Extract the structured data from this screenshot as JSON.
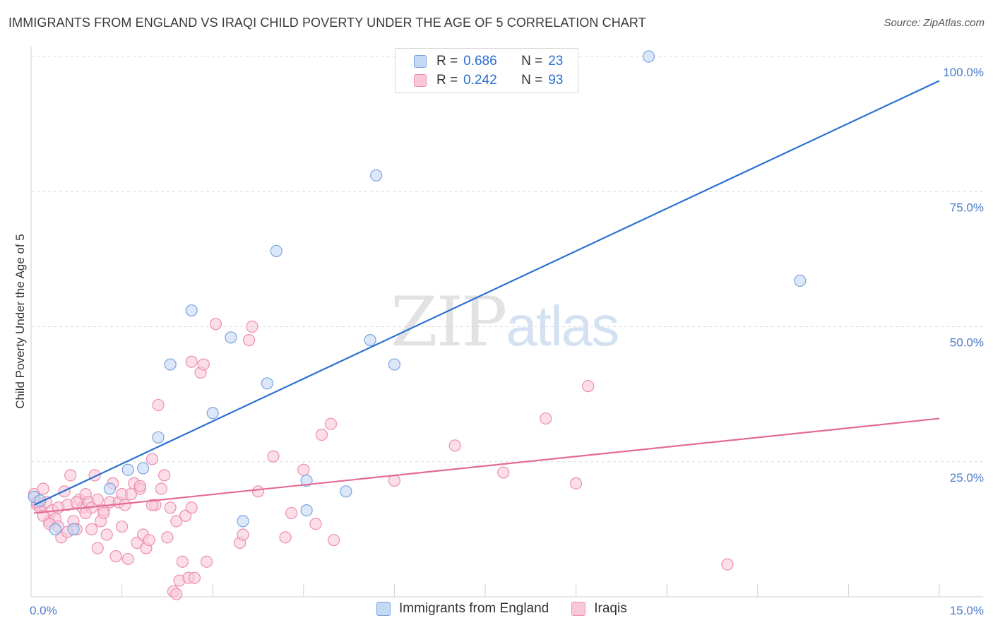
{
  "title": "IMMIGRANTS FROM ENGLAND VS IRAQI CHILD POVERTY UNDER THE AGE OF 5 CORRELATION CHART",
  "source": "Source: ZipAtlas.com",
  "watermark": {
    "part1": "ZIP",
    "part2": "atlas"
  },
  "legend": {
    "rows": [
      {
        "r_label": "R =",
        "r_value": "0.686",
        "n_label": "N =",
        "n_value": "23"
      },
      {
        "r_label": "R =",
        "r_value": "0.242",
        "n_label": "N =",
        "n_value": "93"
      }
    ]
  },
  "bottom_legend": [
    "Immigrants from England",
    "Iraqis"
  ],
  "colors": {
    "england_fill": "#c5d9f5",
    "england_stroke": "#7aa3dd",
    "england_line": "#2a6fd1",
    "iraqi_fill": "#f9c8d8",
    "iraqi_stroke": "#ec8fb0",
    "iraqi_line": "#e46a96",
    "tick_text": "#4a7cc9",
    "grid": "#dcdcdc"
  },
  "chart_data": {
    "type": "scatter",
    "xlabel": "",
    "ylabel": "Child Poverty Under the Age of 5",
    "xlim": [
      0,
      15
    ],
    "ylim": [
      0,
      100
    ],
    "x_tick_labels": [
      {
        "value": 0,
        "label": "0.0%"
      },
      {
        "value": 15,
        "label": "15.0%"
      }
    ],
    "x_minor_ticks": [
      1.5,
      3.0,
      4.5,
      6.0,
      7.5,
      9.0,
      10.5,
      12.0,
      13.5,
      15.0
    ],
    "y_ticks": [
      {
        "value": 25,
        "label": "25.0%"
      },
      {
        "value": 50,
        "label": "50.0%"
      },
      {
        "value": 75,
        "label": "75.0%"
      },
      {
        "value": 100,
        "label": "100.0%"
      }
    ],
    "grid": "horizontal dashed",
    "legend_placement": "top-center",
    "series": [
      {
        "name": "Immigrants from England",
        "points": [
          [
            0.05,
            18.5
          ],
          [
            0.15,
            17.8
          ],
          [
            0.4,
            12.5
          ],
          [
            0.7,
            12.5
          ],
          [
            1.3,
            20.0
          ],
          [
            1.6,
            23.5
          ],
          [
            1.85,
            23.8
          ],
          [
            2.1,
            29.5
          ],
          [
            2.3,
            43.0
          ],
          [
            2.65,
            53.0
          ],
          [
            3.0,
            34.0
          ],
          [
            3.3,
            48.0
          ],
          [
            3.5,
            14.0
          ],
          [
            3.9,
            39.5
          ],
          [
            4.05,
            64.0
          ],
          [
            4.55,
            21.5
          ],
          [
            4.55,
            16.0
          ],
          [
            5.2,
            19.5
          ],
          [
            5.6,
            47.5
          ],
          [
            5.7,
            78.0
          ],
          [
            6.0,
            43.0
          ],
          [
            10.2,
            100.0
          ],
          [
            12.7,
            58.5
          ]
        ],
        "trendline": {
          "x": [
            0.05,
            15.0
          ],
          "y": [
            17.0,
            95.5
          ]
        }
      },
      {
        "name": "Iraqis",
        "points": [
          [
            0.05,
            19.0
          ],
          [
            0.1,
            17.0
          ],
          [
            0.15,
            16.5
          ],
          [
            0.2,
            20.0
          ],
          [
            0.25,
            17.5
          ],
          [
            0.3,
            14.0
          ],
          [
            0.35,
            16.0
          ],
          [
            0.4,
            14.5
          ],
          [
            0.45,
            13.0
          ],
          [
            0.5,
            11.0
          ],
          [
            0.55,
            19.5
          ],
          [
            0.6,
            17.0
          ],
          [
            0.65,
            22.5
          ],
          [
            0.7,
            14.0
          ],
          [
            0.75,
            12.5
          ],
          [
            0.8,
            18.0
          ],
          [
            0.85,
            16.5
          ],
          [
            0.9,
            19.0
          ],
          [
            0.95,
            17.5
          ],
          [
            1.0,
            16.5
          ],
          [
            1.0,
            12.5
          ],
          [
            1.05,
            22.5
          ],
          [
            1.1,
            18.0
          ],
          [
            1.1,
            9.0
          ],
          [
            1.15,
            14.0
          ],
          [
            1.2,
            16.0
          ],
          [
            1.25,
            11.5
          ],
          [
            1.3,
            17.5
          ],
          [
            1.35,
            21.0
          ],
          [
            1.4,
            7.5
          ],
          [
            1.45,
            17.5
          ],
          [
            1.5,
            19.0
          ],
          [
            1.55,
            17.0
          ],
          [
            1.6,
            7.0
          ],
          [
            1.65,
            19.0
          ],
          [
            1.7,
            21.0
          ],
          [
            1.75,
            10.0
          ],
          [
            1.8,
            20.0
          ],
          [
            1.85,
            11.5
          ],
          [
            1.9,
            9.0
          ],
          [
            1.95,
            10.5
          ],
          [
            2.0,
            25.5
          ],
          [
            2.05,
            17.0
          ],
          [
            2.1,
            35.5
          ],
          [
            2.15,
            20.0
          ],
          [
            2.2,
            22.5
          ],
          [
            2.25,
            11.0
          ],
          [
            2.3,
            16.5
          ],
          [
            2.35,
            1.0
          ],
          [
            2.4,
            14.0
          ],
          [
            2.45,
            3.0
          ],
          [
            2.5,
            6.5
          ],
          [
            2.55,
            15.0
          ],
          [
            2.6,
            3.5
          ],
          [
            2.65,
            43.5
          ],
          [
            2.65,
            16.5
          ],
          [
            2.7,
            3.5
          ],
          [
            2.8,
            41.5
          ],
          [
            2.85,
            43.0
          ],
          [
            2.9,
            6.5
          ],
          [
            3.05,
            50.5
          ],
          [
            3.45,
            10.0
          ],
          [
            3.5,
            11.5
          ],
          [
            3.6,
            47.5
          ],
          [
            3.65,
            50.0
          ],
          [
            3.75,
            19.5
          ],
          [
            4.0,
            26.0
          ],
          [
            4.2,
            11.0
          ],
          [
            4.3,
            15.5
          ],
          [
            4.5,
            23.5
          ],
          [
            4.7,
            13.5
          ],
          [
            4.8,
            30.0
          ],
          [
            4.95,
            32.0
          ],
          [
            5.0,
            10.5
          ],
          [
            6.0,
            21.5
          ],
          [
            7.0,
            28.0
          ],
          [
            7.8,
            23.0
          ],
          [
            8.5,
            33.0
          ],
          [
            9.0,
            21.0
          ],
          [
            9.2,
            39.0
          ],
          [
            11.5,
            6.0
          ],
          [
            0.1,
            17.5
          ],
          [
            0.2,
            15.0
          ],
          [
            0.3,
            13.5
          ],
          [
            0.45,
            16.5
          ],
          [
            0.6,
            12.0
          ],
          [
            0.75,
            17.5
          ],
          [
            0.9,
            15.5
          ],
          [
            1.2,
            15.5
          ],
          [
            1.5,
            13.0
          ],
          [
            1.8,
            20.5
          ],
          [
            2.0,
            17.0
          ],
          [
            2.4,
            0.5
          ]
        ],
        "trendline": {
          "x": [
            0.05,
            15.0
          ],
          "y": [
            15.5,
            33.0
          ]
        }
      }
    ]
  }
}
